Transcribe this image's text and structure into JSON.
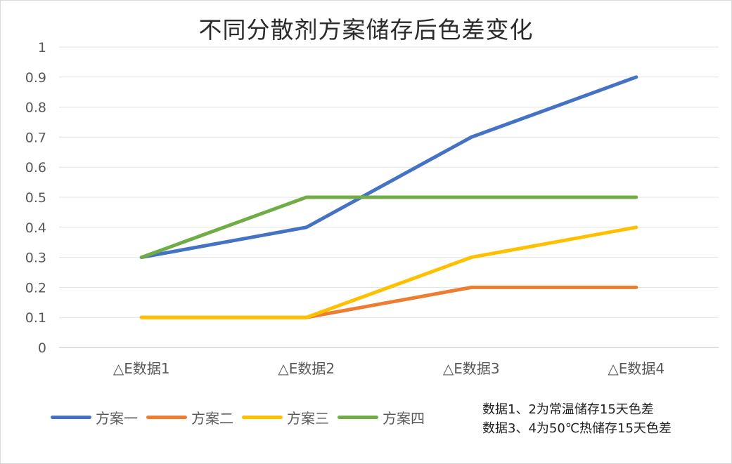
{
  "chart_data": {
    "type": "line",
    "title": "不同分散剂方案储存后色差变化",
    "categories": [
      "△E数据1",
      "△E数据2",
      "△E数据3",
      "△E数据4"
    ],
    "series": [
      {
        "name": "方案一",
        "values": [
          0.3,
          0.4,
          0.7,
          0.9
        ],
        "color": "#4472C4"
      },
      {
        "name": "方案二",
        "values": [
          0.1,
          0.1,
          0.2,
          0.2
        ],
        "color": "#ED7D31"
      },
      {
        "name": "方案三",
        "values": [
          0.1,
          0.1,
          0.3,
          0.4
        ],
        "color": "#FFC000"
      },
      {
        "name": "方案四",
        "values": [
          0.3,
          0.5,
          0.5,
          0.5
        ],
        "color": "#70AD47"
      }
    ],
    "ylim": [
      0,
      1
    ],
    "yticks": [
      "0",
      "0.1",
      "0.2",
      "0.3",
      "0.4",
      "0.5",
      "0.6",
      "0.7",
      "0.8",
      "0.9",
      "1"
    ],
    "grid": true,
    "legend_position": "bottom-left",
    "xlabel": "",
    "ylabel": ""
  },
  "notes": [
    "数据1、2为常温储存15天色差",
    "数据3、4为50℃热储存15天色差"
  ]
}
